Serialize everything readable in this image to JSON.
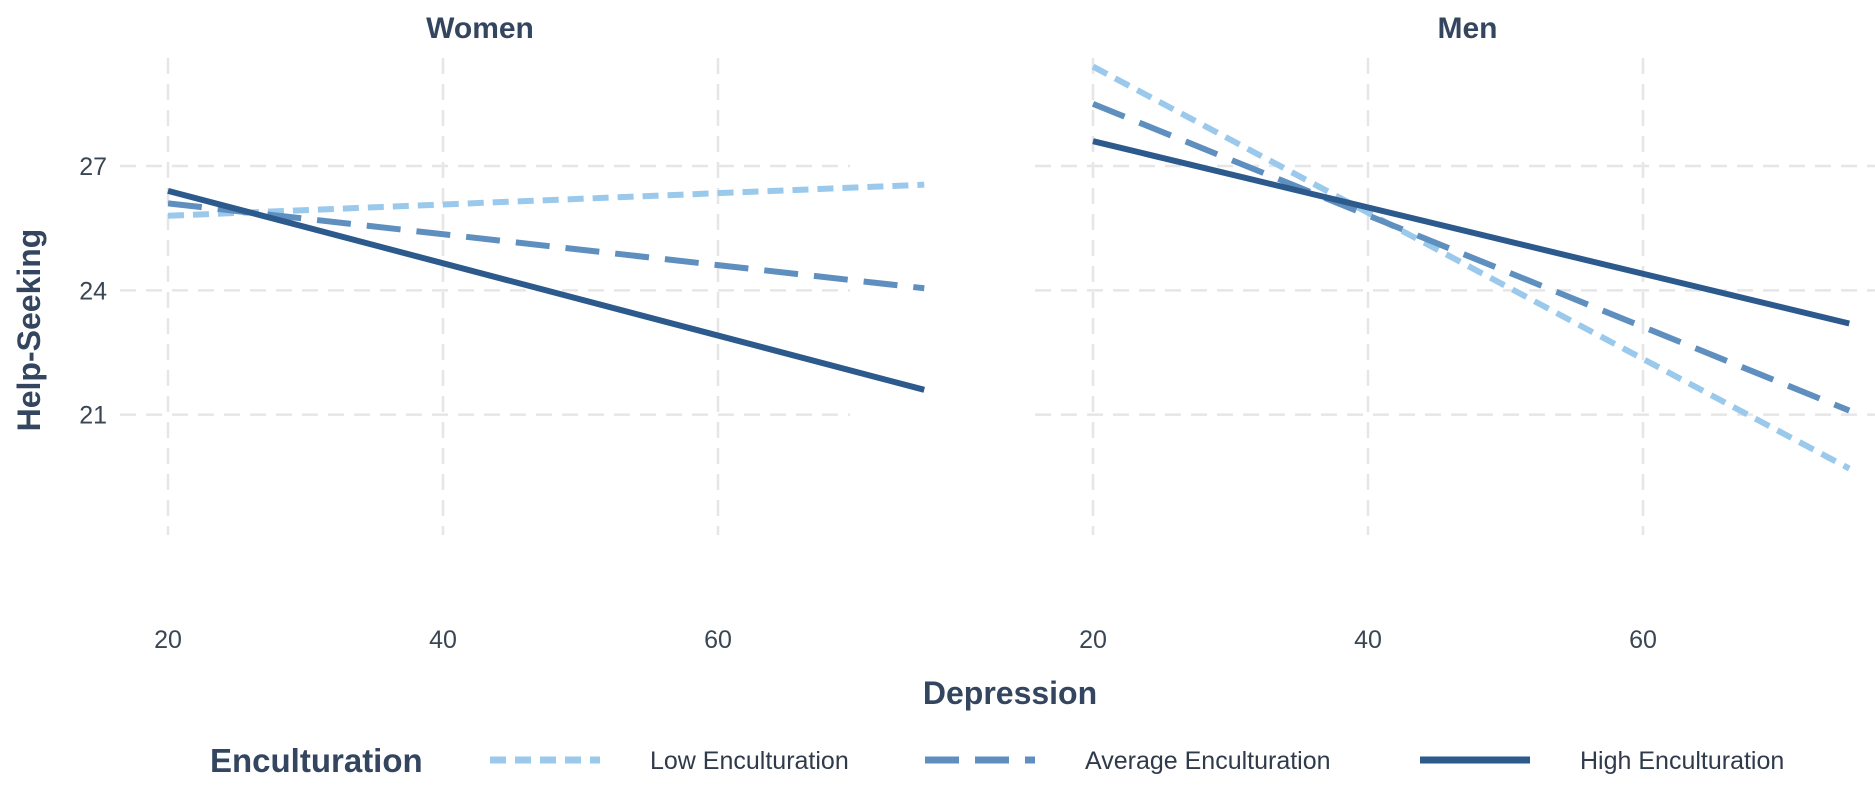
{
  "chart_data": {
    "type": "line",
    "xlabel": "Depression",
    "ylabel": "Help-Seeking",
    "x_ticks": [
      20,
      40,
      60
    ],
    "y_ticks": [
      21,
      24,
      27
    ],
    "xlim": [
      19,
      76
    ],
    "ylim": [
      18.7,
      29.8
    ],
    "grid": true,
    "legend": {
      "title": "Enculturation",
      "position": "bottom",
      "entries": [
        "Low Enculturation",
        "Average Enculturation",
        "High Enculturation"
      ]
    },
    "series_styles": [
      {
        "name": "Low Enculturation",
        "color": "#9ac9ec",
        "dash": "dotted"
      },
      {
        "name": "Average Enculturation",
        "color": "#5e8fbf",
        "dash": "dashed"
      },
      {
        "name": "High Enculturation",
        "color": "#2d5a8c",
        "dash": "solid"
      }
    ],
    "panels": [
      {
        "title": "Women",
        "series": [
          {
            "name": "Low Enculturation",
            "x": [
              20,
              75
            ],
            "y": [
              25.8,
              26.55
            ]
          },
          {
            "name": "Average Enculturation",
            "x": [
              20,
              75
            ],
            "y": [
              26.1,
              24.05
            ]
          },
          {
            "name": "High Enculturation",
            "x": [
              20,
              75
            ],
            "y": [
              26.4,
              21.6
            ]
          }
        ]
      },
      {
        "title": "Men",
        "series": [
          {
            "name": "Low Enculturation",
            "x": [
              20,
              75
            ],
            "y": [
              29.4,
              19.7
            ]
          },
          {
            "name": "Average Enculturation",
            "x": [
              20,
              75
            ],
            "y": [
              28.5,
              21.1
            ]
          },
          {
            "name": "High Enculturation",
            "x": [
              20,
              75
            ],
            "y": [
              27.6,
              23.2
            ]
          }
        ]
      }
    ]
  }
}
